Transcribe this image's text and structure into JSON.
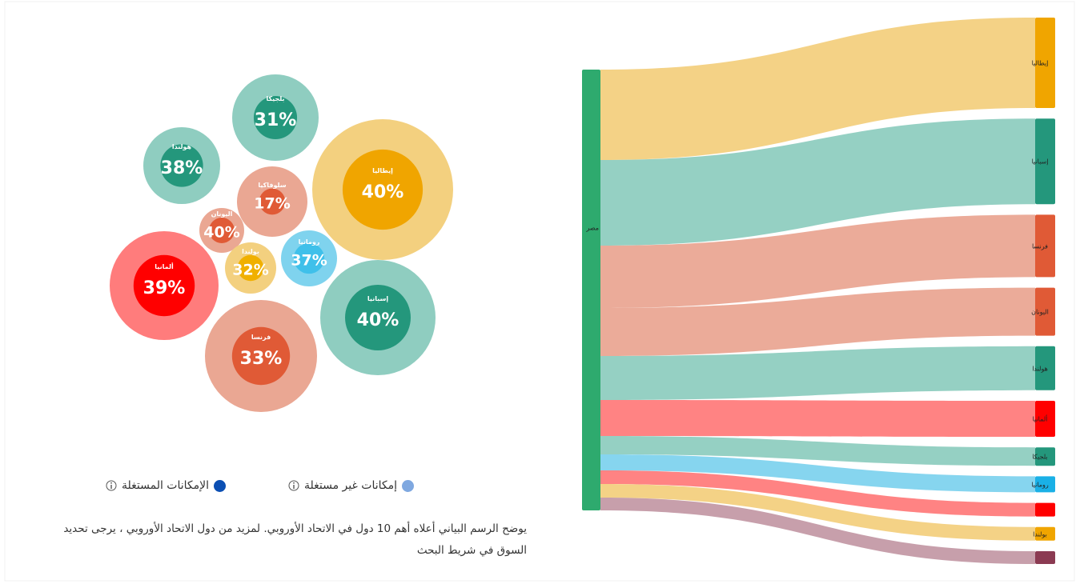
{
  "chart_data": [
    {
      "type": "bubble",
      "categories": [
        "بلجيكا",
        "هولندا",
        "إيطاليا",
        "سلوفاكيا",
        "اليونان",
        "رومانيا",
        "بولندا",
        "ألمانيا",
        "إسبانيا",
        "فرنسا"
      ],
      "values": [
        31,
        38,
        40,
        17,
        40,
        37,
        32,
        39,
        40,
        33
      ],
      "value_labels": [
        "31%",
        "38%",
        "40%",
        "17%",
        "40%",
        "37%",
        "32%",
        "39%",
        "40%",
        "33%"
      ],
      "sizes": [
        54,
        48,
        88,
        44,
        28,
        35,
        32,
        68,
        72,
        70
      ],
      "colors": [
        "#8fcdc0",
        "#8fcdc0",
        "#f3d07f",
        "#eaa793",
        "#eaa793",
        "#7fd3ee",
        "#f3d07f",
        "#ff7c7c",
        "#8fcdc0",
        "#eaa793"
      ],
      "inner_colors": [
        "#24977c",
        "#24977c",
        "#f0a500",
        "#e05a36",
        "#e05a36",
        "#3fc0ea",
        "#f0b000",
        "#ff0000",
        "#24977c",
        "#e05a36"
      ],
      "legend": [
        {
          "label": "إمكانات غير مستغلة",
          "color": "#7fa8e0"
        },
        {
          "label": "الإمكانات المستغلة",
          "color": "#0b4fb3"
        }
      ],
      "caption": "يوضح الرسم البياني أعلاه أهم 10 دول في الاتحاد الأوروبي. لمزيد من دول الاتحاد الأوروبي ، يرجى تحديد السوق في شريط البحث"
    },
    {
      "type": "sankey",
      "nodes": [
        "مصر",
        "إيطاليا",
        "إسبانيا",
        "فرنسا",
        "اليونان",
        "هولندا",
        "ألمانيا",
        "بلجيكا",
        "رومانيا",
        null,
        "بولندا",
        null
      ],
      "node_colors": [
        "#2eaa6e",
        "#f0a500",
        "#24977c",
        "#e05a36",
        "#e05a36",
        "#24977c",
        "#ff0000",
        "#24977c",
        "#1ab0e6",
        "#ff0000",
        "#f0a500",
        "#8b3a52"
      ],
      "links": [
        {
          "source": 0,
          "target": 1,
          "value": 113,
          "color": "#f3d07f"
        },
        {
          "source": 0,
          "target": 2,
          "value": 107,
          "color": "#8fcdc0"
        },
        {
          "source": 0,
          "target": 3,
          "value": 78,
          "color": "#eaa793"
        },
        {
          "source": 0,
          "target": 4,
          "value": 60,
          "color": "#eaa793"
        },
        {
          "source": 0,
          "target": 5,
          "value": 55,
          "color": "#8fcdc0"
        },
        {
          "source": 0,
          "target": 6,
          "value": 45,
          "color": "#ff7c7c"
        },
        {
          "source": 0,
          "target": 7,
          "value": 23,
          "color": "#8fcdc0"
        },
        {
          "source": 0,
          "target": 8,
          "value": 20,
          "color": "#7fd3ee"
        },
        {
          "source": 0,
          "target": 9,
          "value": 17,
          "color": "#ff7c7c"
        },
        {
          "source": 0,
          "target": 10,
          "value": 17,
          "color": "#f3d07f"
        },
        {
          "source": 0,
          "target": 11,
          "value": 16,
          "color": "#c49aa6"
        }
      ]
    }
  ]
}
